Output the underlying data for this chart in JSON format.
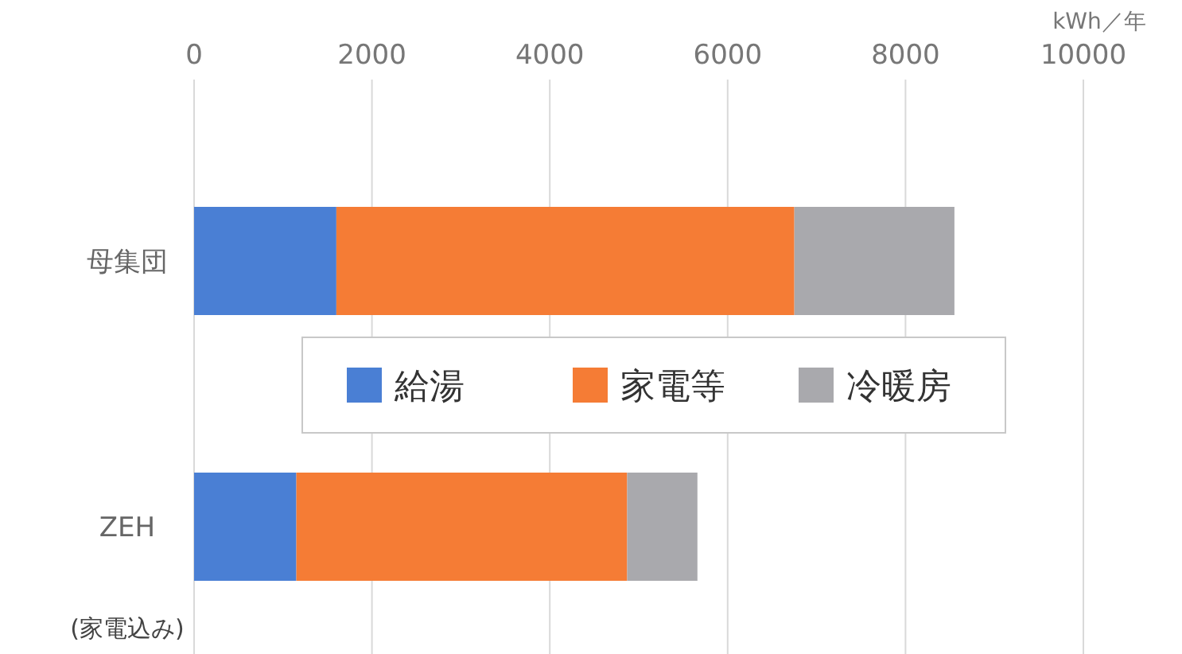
{
  "chart_data": {
    "type": "bar",
    "orientation": "horizontal",
    "stacked": true,
    "categories": [
      "母集団",
      "ZEH"
    ],
    "series": [
      {
        "name": "給湯",
        "color": "#4a7fd4",
        "values": [
          1600,
          1150
        ]
      },
      {
        "name": "家電等",
        "color": "#f57c35",
        "values": [
          5150,
          3720
        ]
      },
      {
        "name": "冷暖房",
        "color": "#a9a9ad",
        "values": [
          1800,
          790
        ]
      }
    ],
    "xlim": [
      0,
      10000
    ],
    "xticks": [
      0,
      2000,
      4000,
      6000,
      8000,
      10000
    ],
    "xlabel": "kWh／年",
    "grid": "x",
    "legend": "center",
    "annotations": [
      "(家電込み)"
    ]
  }
}
